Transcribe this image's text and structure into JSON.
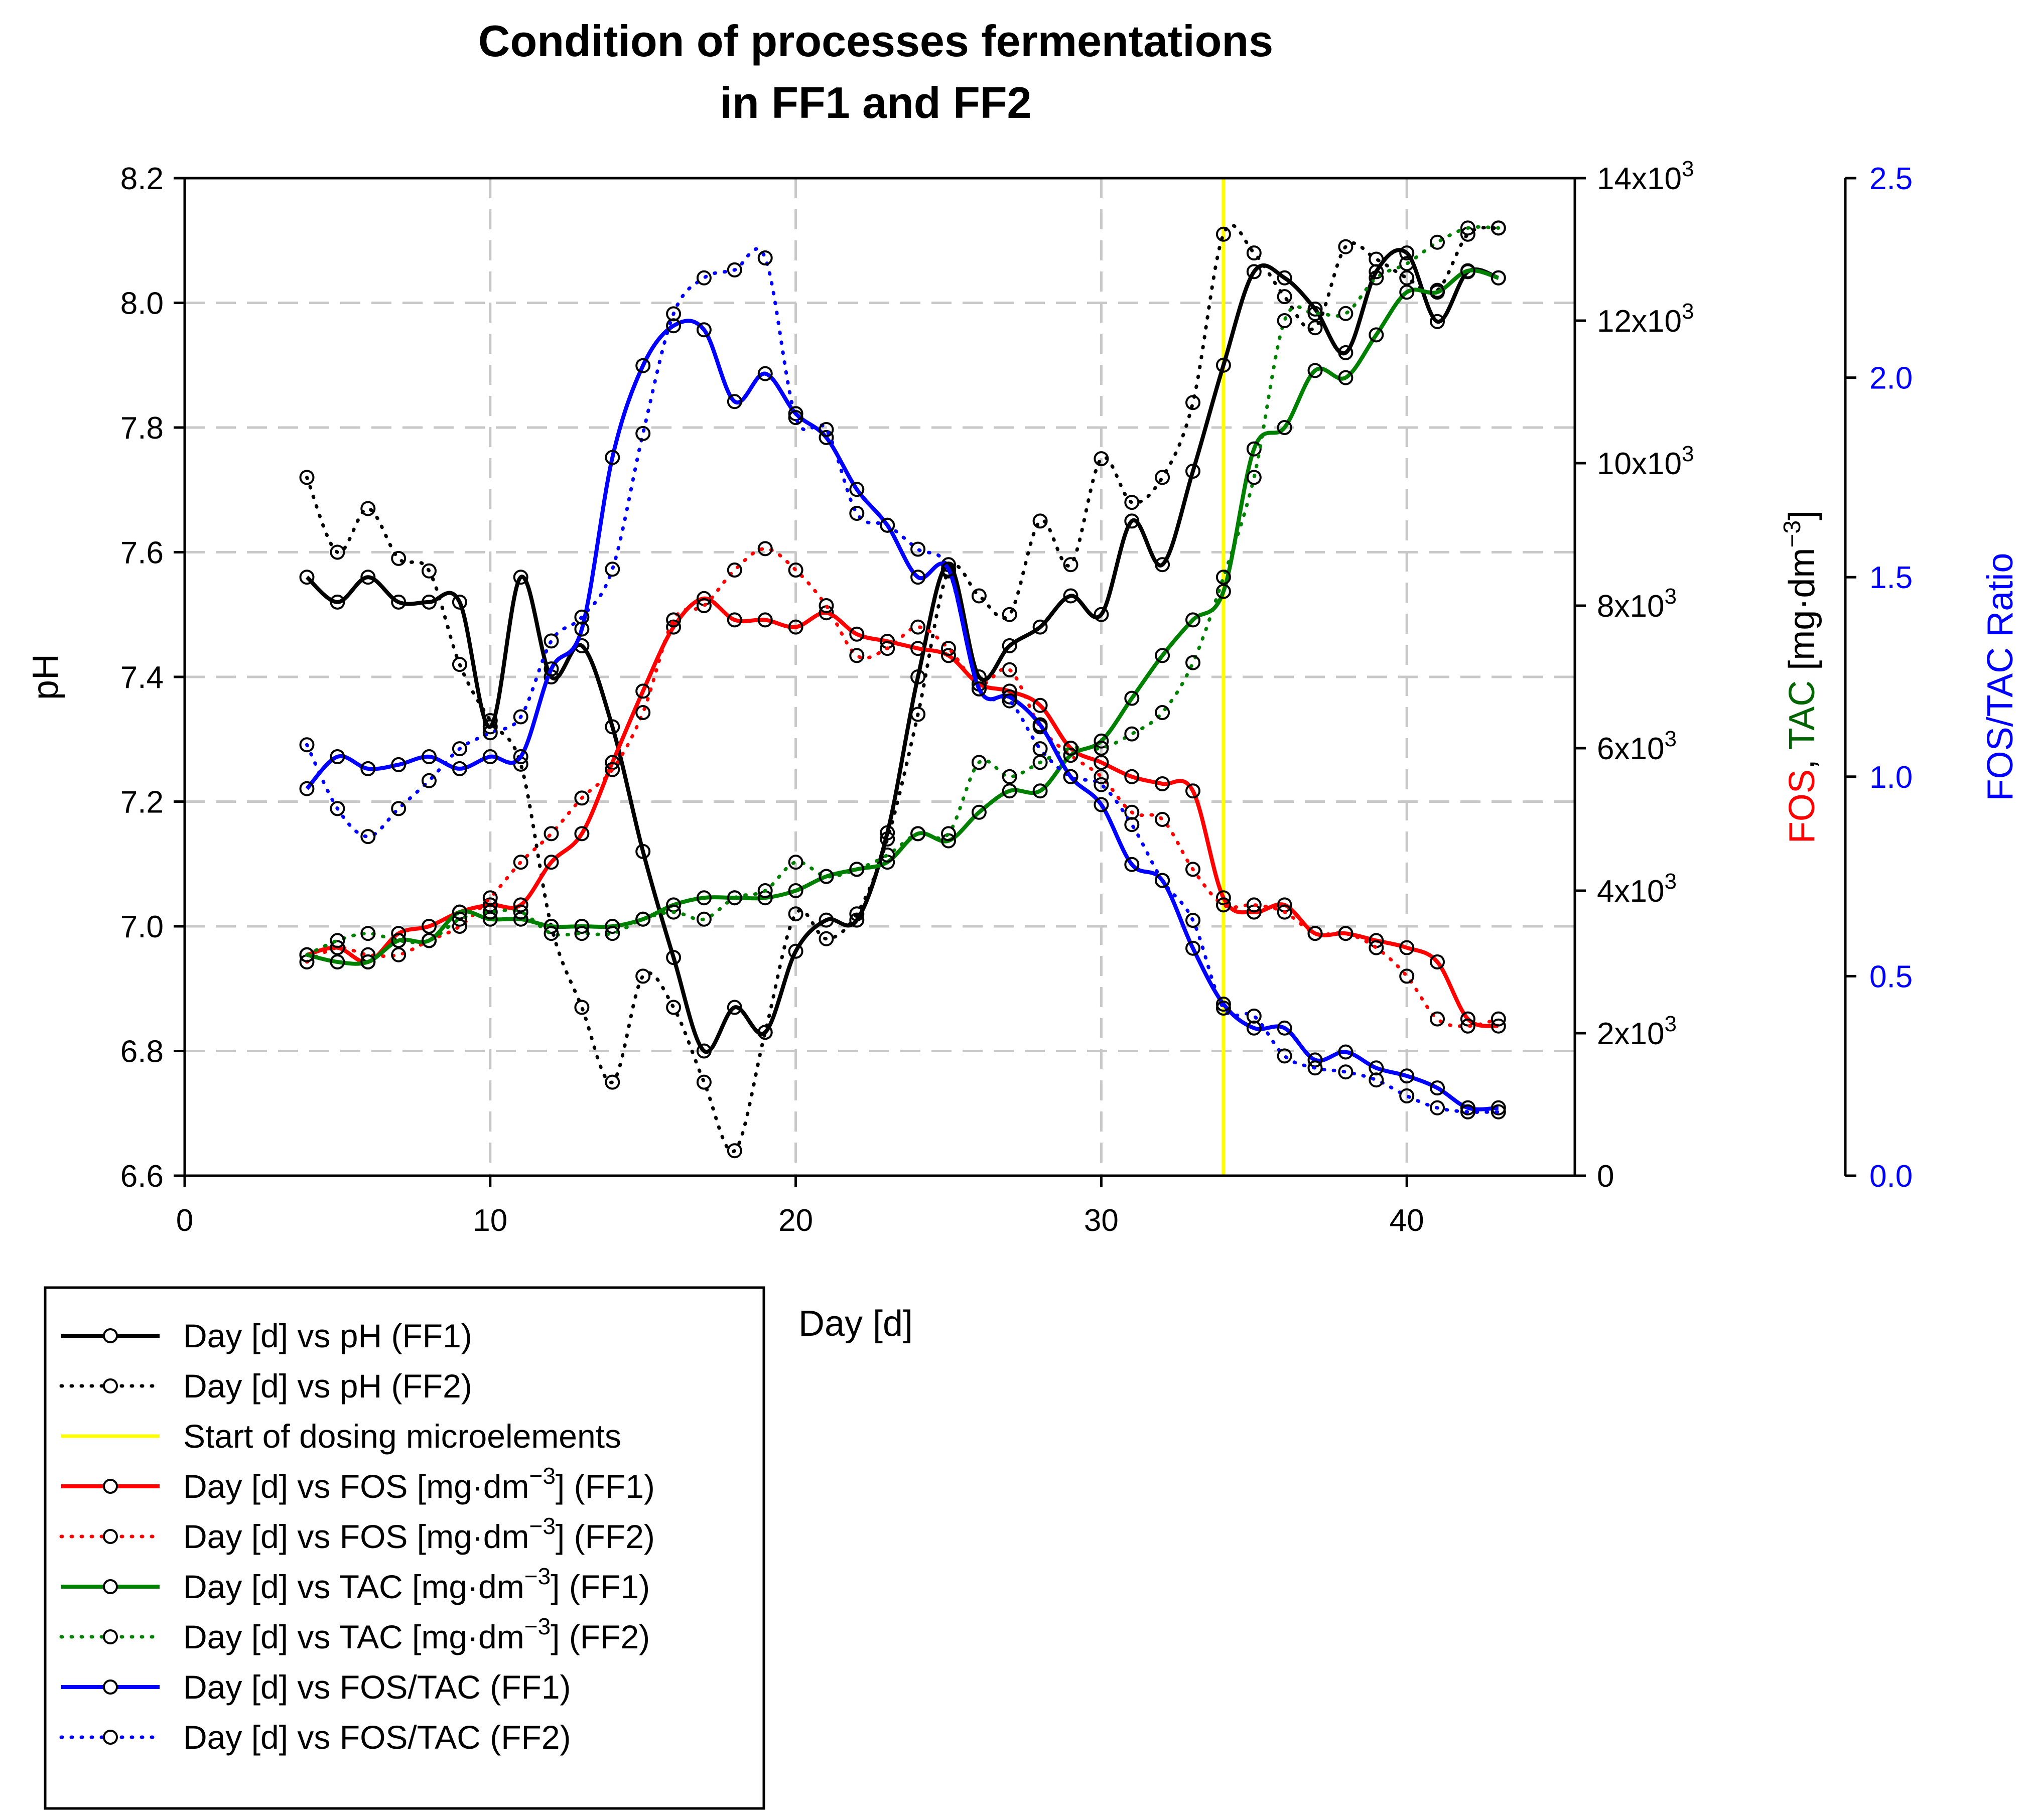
{
  "chart_data": {
    "type": "line",
    "title": [
      "Condition of processes fermentations",
      "in FF1 and FF2"
    ],
    "xlabel": "Day [d]",
    "x_ticks": [
      0,
      10,
      20,
      30,
      40
    ],
    "xlim": [
      0,
      45.5
    ],
    "axes": {
      "ph": {
        "label": "pH",
        "ylim": [
          6.6,
          8.2
        ],
        "ticks": [
          "6.6",
          "6.8",
          "7.0",
          "7.2",
          "7.4",
          "7.6",
          "7.8",
          "8.0",
          "8.2"
        ]
      },
      "fos_tac": {
        "label_parts": [
          "FOS",
          ", ",
          "TAC",
          " [mg",
          "·",
          "dm",
          "−3",
          "]"
        ],
        "ylim": [
          0,
          14000
        ],
        "ticks": [
          "0",
          "2x10",
          "4x10",
          "6x10",
          "8x10",
          "10x10",
          "12x10",
          "14x10"
        ],
        "tick_exponent": "3",
        "color_fos": "#ff0000",
        "color_tac": "#006400"
      },
      "ratio": {
        "label": "FOS/TAC Ratio",
        "ylim": [
          0.0,
          2.5
        ],
        "ticks": [
          "0.0",
          "0.5",
          "1.0",
          "1.5",
          "2.0",
          "2.5"
        ],
        "color": "#0000ff"
      }
    },
    "marker_line": {
      "x": 34,
      "color": "#ffff00",
      "label": "Start of dosing microelements"
    },
    "series": [
      {
        "key": "ph1",
        "name": "Day [d] vs pH (FF1)",
        "axis": "ph",
        "color": "#000000",
        "style": "solid",
        "x": [
          4,
          5,
          6,
          7,
          8,
          9,
          10,
          11,
          12,
          13,
          14,
          15,
          16,
          17,
          18,
          19,
          20,
          21,
          22,
          23,
          24,
          25,
          26,
          27,
          28,
          29,
          30,
          31,
          32,
          33,
          34,
          35,
          36,
          37,
          38,
          39,
          40,
          41,
          42,
          43
        ],
        "y": [
          7.56,
          7.52,
          7.56,
          7.52,
          7.52,
          7.52,
          7.32,
          7.56,
          7.4,
          7.45,
          7.32,
          7.12,
          6.95,
          6.8,
          6.87,
          6.83,
          6.96,
          7.01,
          7.01,
          7.15,
          7.4,
          7.58,
          7.4,
          7.45,
          7.48,
          7.53,
          7.5,
          7.65,
          7.58,
          7.73,
          7.9,
          8.05,
          8.04,
          7.99,
          7.92,
          8.05,
          8.08,
          7.97,
          8.05,
          8.04
        ]
      },
      {
        "key": "ph2",
        "name": "Day [d] vs pH (FF2)",
        "axis": "ph",
        "color": "#000000",
        "style": "dotted",
        "x": [
          4,
          5,
          6,
          7,
          8,
          9,
          10,
          11,
          12,
          13,
          14,
          15,
          16,
          17,
          18,
          19,
          20,
          21,
          22,
          23,
          24,
          25,
          26,
          27,
          28,
          29,
          30,
          31,
          32,
          33,
          34,
          35,
          36,
          37,
          38,
          39,
          40,
          41,
          42,
          43
        ],
        "y": [
          7.72,
          7.6,
          7.67,
          7.59,
          7.57,
          7.42,
          7.33,
          7.26,
          7.0,
          6.87,
          6.75,
          6.92,
          6.87,
          6.75,
          6.64,
          6.83,
          7.02,
          6.98,
          7.02,
          7.14,
          7.34,
          7.57,
          7.53,
          7.5,
          7.65,
          7.58,
          7.75,
          7.68,
          7.72,
          7.84,
          8.11,
          8.08,
          8.01,
          7.96,
          8.09,
          8.07,
          8.04,
          8.02,
          8.11,
          8.12
        ]
      },
      {
        "key": "fos1",
        "name": "Day [d] vs FOS [mg·dm−3] (FF1)",
        "axis": "fos_tac",
        "color": "#ff0000",
        "style": "solid",
        "x": [
          4,
          5,
          6,
          7,
          8,
          9,
          10,
          11,
          12,
          13,
          14,
          15,
          16,
          17,
          18,
          19,
          20,
          21,
          22,
          23,
          24,
          25,
          26,
          27,
          28,
          29,
          30,
          31,
          32,
          33,
          34,
          35,
          36,
          37,
          38,
          39,
          40,
          41,
          42,
          43
        ],
        "y": [
          3100,
          3200,
          3000,
          3400,
          3500,
          3700,
          3800,
          3800,
          4400,
          4800,
          5800,
          6800,
          7700,
          8100,
          7800,
          7800,
          7700,
          7900,
          7600,
          7500,
          7400,
          7300,
          6900,
          6800,
          6600,
          6000,
          5800,
          5600,
          5500,
          5400,
          3900,
          3700,
          3800,
          3400,
          3400,
          3300,
          3200,
          3000,
          2200,
          2100
        ]
      },
      {
        "key": "fos2",
        "name": "Day [d] vs FOS [mg·dm−3] (FF2)",
        "axis": "fos_tac",
        "color": "#ff0000",
        "style": "dotted",
        "x": [
          4,
          5,
          6,
          7,
          8,
          9,
          10,
          11,
          12,
          13,
          14,
          15,
          16,
          17,
          18,
          19,
          20,
          21,
          22,
          23,
          24,
          25,
          26,
          27,
          28,
          29,
          30,
          31,
          32,
          33,
          34,
          35,
          36,
          37,
          38,
          39,
          40,
          41,
          42,
          43
        ],
        "y": [
          3000,
          3200,
          3100,
          3100,
          3300,
          3500,
          3900,
          4400,
          4800,
          5300,
          5700,
          6500,
          7800,
          8000,
          8500,
          8800,
          8500,
          8000,
          7300,
          7400,
          7700,
          7400,
          6900,
          7100,
          6300,
          5900,
          5600,
          5100,
          5000,
          4300,
          3800,
          3800,
          3700,
          3400,
          3400,
          3200,
          2800,
          2200,
          2100,
          2200
        ]
      },
      {
        "key": "tac1",
        "name": "Day [d] vs TAC [mg·dm−3] (FF1)",
        "axis": "fos_tac",
        "color": "#008000",
        "style": "solid",
        "x": [
          4,
          5,
          6,
          7,
          8,
          9,
          10,
          11,
          12,
          13,
          14,
          15,
          16,
          17,
          18,
          19,
          20,
          21,
          22,
          23,
          24,
          25,
          26,
          27,
          28,
          29,
          30,
          31,
          32,
          33,
          34,
          35,
          36,
          37,
          38,
          39,
          40,
          41,
          42,
          43
        ],
        "y": [
          3100,
          3000,
          3000,
          3300,
          3300,
          3700,
          3600,
          3600,
          3500,
          3500,
          3500,
          3600,
          3800,
          3900,
          3900,
          3900,
          4000,
          4200,
          4300,
          4400,
          4800,
          4700,
          5100,
          5400,
          5400,
          5900,
          6100,
          6700,
          7300,
          7800,
          8200,
          10200,
          10500,
          11300,
          11200,
          11800,
          12400,
          12400,
          12700,
          12600
        ]
      },
      {
        "key": "tac2",
        "name": "Day [d] vs TAC [mg·dm−3] (FF2)",
        "axis": "fos_tac",
        "color": "#008000",
        "style": "dotted",
        "x": [
          4,
          5,
          6,
          7,
          8,
          9,
          10,
          11,
          12,
          13,
          14,
          15,
          16,
          17,
          18,
          19,
          20,
          21,
          22,
          23,
          24,
          25,
          26,
          27,
          28,
          29,
          30,
          31,
          32,
          33,
          34,
          35,
          36,
          37,
          38,
          39,
          40,
          41,
          42,
          43
        ],
        "y": [
          3100,
          3300,
          3400,
          3300,
          3300,
          3600,
          3700,
          3700,
          3400,
          3400,
          3400,
          3600,
          3700,
          3600,
          3900,
          4000,
          4400,
          4200,
          4300,
          4500,
          4800,
          4800,
          5800,
          5600,
          5800,
          6000,
          6000,
          6200,
          6500,
          7200,
          8400,
          9800,
          12000,
          12100,
          12100,
          12600,
          12800,
          13100,
          13300,
          13300
        ]
      },
      {
        "key": "ratio1",
        "name": "Day [d] vs FOS/TAC (FF1)",
        "axis": "ratio",
        "color": "#0000ff",
        "style": "solid",
        "x": [
          4,
          5,
          6,
          7,
          8,
          9,
          10,
          11,
          12,
          13,
          14,
          15,
          16,
          17,
          18,
          19,
          20,
          21,
          22,
          23,
          24,
          25,
          26,
          27,
          28,
          29,
          30,
          31,
          32,
          33,
          34,
          35,
          36,
          37,
          38,
          39,
          40,
          41,
          42,
          43
        ],
        "y": [
          0.97,
          1.05,
          1.02,
          1.03,
          1.05,
          1.02,
          1.05,
          1.05,
          1.27,
          1.37,
          1.8,
          2.03,
          2.13,
          2.12,
          1.94,
          2.01,
          1.91,
          1.85,
          1.72,
          1.63,
          1.5,
          1.52,
          1.22,
          1.2,
          1.13,
          1.0,
          0.93,
          0.78,
          0.74,
          0.57,
          0.43,
          0.37,
          0.37,
          0.29,
          0.31,
          0.27,
          0.25,
          0.22,
          0.17,
          0.17
        ]
      },
      {
        "key": "ratio2",
        "name": "Day [d] vs FOS/TAC (FF2)",
        "axis": "ratio",
        "color": "#0000ff",
        "style": "dotted",
        "x": [
          4,
          5,
          6,
          7,
          8,
          9,
          10,
          11,
          12,
          13,
          14,
          15,
          16,
          17,
          18,
          19,
          20,
          21,
          22,
          23,
          24,
          25,
          26,
          27,
          28,
          29,
          30,
          31,
          32,
          33,
          34,
          35,
          36,
          37,
          38,
          39,
          40,
          41,
          42,
          43
        ],
        "y": [
          1.08,
          0.92,
          0.85,
          0.92,
          0.99,
          1.07,
          1.11,
          1.15,
          1.34,
          1.4,
          1.52,
          1.86,
          2.16,
          2.25,
          2.27,
          2.3,
          1.9,
          1.87,
          1.66,
          1.63,
          1.57,
          1.52,
          1.22,
          1.19,
          1.07,
          1.0,
          0.98,
          0.88,
          0.74,
          0.64,
          0.42,
          0.4,
          0.3,
          0.27,
          0.26,
          0.24,
          0.2,
          0.17,
          0.16,
          0.16
        ]
      }
    ],
    "legend": {
      "placement": "bottom-left"
    }
  }
}
